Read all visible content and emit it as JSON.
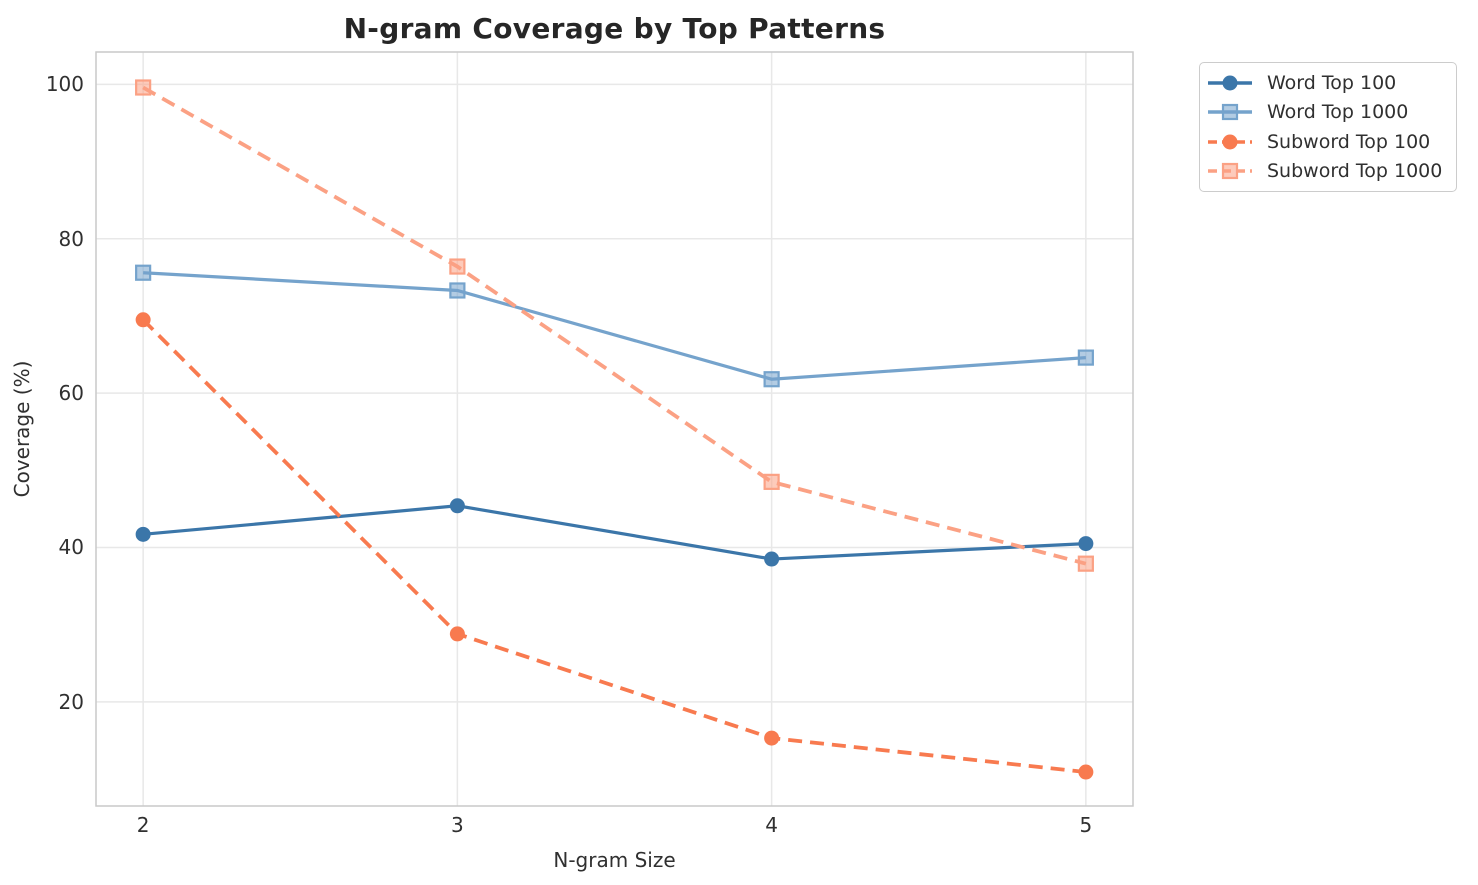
{
  "chart_data": {
    "type": "line",
    "title": "N-gram Coverage by Top Patterns",
    "xlabel": "N-gram Size",
    "ylabel": "Coverage (%)",
    "x": [
      2,
      3,
      4,
      5
    ],
    "xticks": [
      2,
      3,
      4,
      5
    ],
    "yticks": [
      20,
      40,
      60,
      80,
      100
    ],
    "xlim": [
      1.85,
      5.15
    ],
    "ylim": [
      6.5,
      104.2
    ],
    "grid": true,
    "legend_position": "outside upper right",
    "grid_color": "#e8e8e8",
    "spine_color": "#c9c9c9",
    "text_color": "#303030",
    "title_color": "#262626",
    "series": [
      {
        "name": "Word Top 100",
        "color": "#3b76a9",
        "linestyle": "solid",
        "marker": "circle",
        "values": [
          41.7,
          45.4,
          38.5,
          40.5
        ]
      },
      {
        "name": "Word Top 1000",
        "color": "#75a3cc",
        "linestyle": "solid",
        "marker": "square",
        "values": [
          75.6,
          73.3,
          61.8,
          64.6
        ]
      },
      {
        "name": "Subword Top 100",
        "color": "#f87a4f",
        "linestyle": "dashed",
        "marker": "circle",
        "values": [
          69.5,
          28.8,
          15.3,
          10.9
        ]
      },
      {
        "name": "Subword Top 1000",
        "color": "#fba184",
        "linestyle": "dashed",
        "marker": "square",
        "values": [
          99.6,
          76.4,
          48.5,
          37.9
        ]
      }
    ]
  }
}
